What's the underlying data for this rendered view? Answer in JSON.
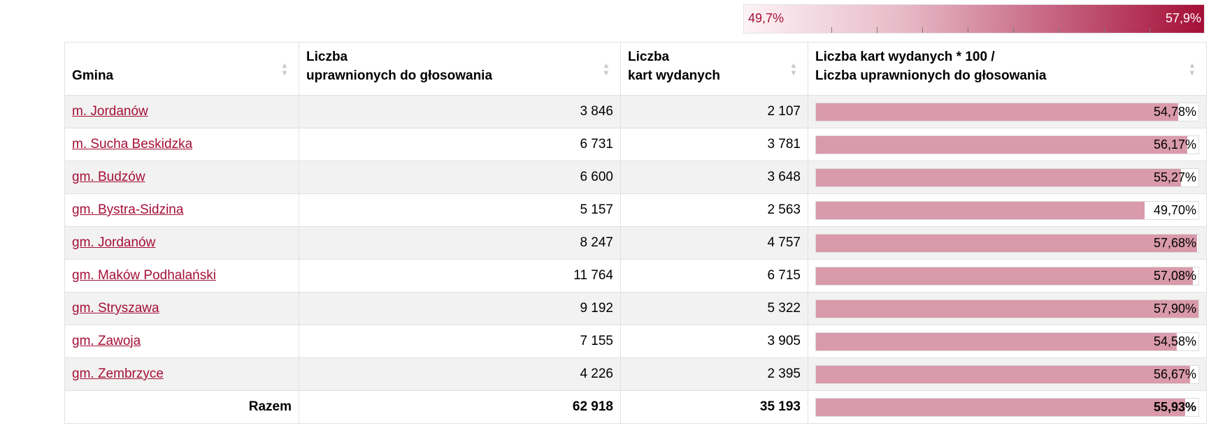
{
  "legend": {
    "min_label": "49,7%",
    "max_label": "57,9%",
    "min_value": 49.7,
    "max_value": 57.9
  },
  "table": {
    "headers": {
      "gmina": "Gmina",
      "uprawnieni_l1": "Liczba",
      "uprawnieni_l2": "uprawnionych do głosowania",
      "karty_l1": "Liczba",
      "karty_l2": "kart wydanych",
      "frekwencja_l1": "Liczba kart wydanych * 100 /",
      "frekwencja_l2": "Liczba uprawnionych do głosowania"
    },
    "rows": [
      {
        "name": "m. Jordanów",
        "uprawnieni": "3 846",
        "karty": "2 107",
        "pct": "54,78%",
        "value": 54.78
      },
      {
        "name": "m. Sucha Beskidzka",
        "uprawnieni": "6 731",
        "karty": "3 781",
        "pct": "56,17%",
        "value": 56.17
      },
      {
        "name": "gm. Budzów",
        "uprawnieni": "6 600",
        "karty": "3 648",
        "pct": "55,27%",
        "value": 55.27
      },
      {
        "name": "gm. Bystra-Sidzina",
        "uprawnieni": "5 157",
        "karty": "2 563",
        "pct": "49,70%",
        "value": 49.7
      },
      {
        "name": "gm. Jordanów",
        "uprawnieni": "8 247",
        "karty": "4 757",
        "pct": "57,68%",
        "value": 57.68
      },
      {
        "name": "gm. Maków Podhalański",
        "uprawnieni": "11 764",
        "karty": "6 715",
        "pct": "57,08%",
        "value": 57.08
      },
      {
        "name": "gm. Stryszawa",
        "uprawnieni": "9 192",
        "karty": "5 322",
        "pct": "57,90%",
        "value": 57.9
      },
      {
        "name": "gm. Zawoja",
        "uprawnieni": "7 155",
        "karty": "3 905",
        "pct": "54,58%",
        "value": 54.58
      },
      {
        "name": "gm. Zembrzyce",
        "uprawnieni": "4 226",
        "karty": "2 395",
        "pct": "56,67%",
        "value": 56.67
      }
    ],
    "total": {
      "label": "Razem",
      "uprawnieni": "62 918",
      "karty": "35 193",
      "pct": "55,93%",
      "value": 55.93
    }
  }
}
